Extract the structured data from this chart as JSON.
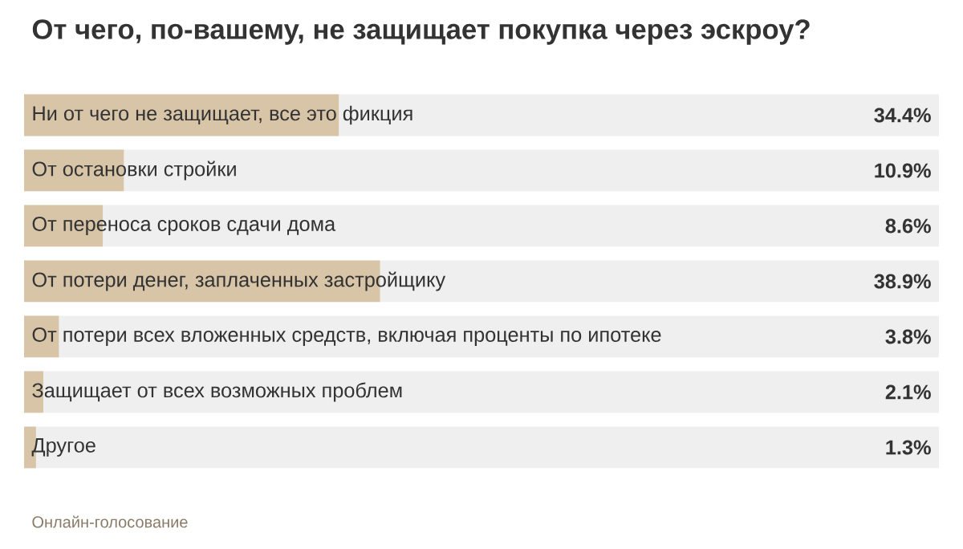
{
  "chart_data": {
    "type": "bar",
    "orientation": "horizontal",
    "title": "От чего, по-вашему, не защищает покупка через эскроу?",
    "categories": [
      "Ни от чего не защищает, все это фикция",
      "От остановки стройки",
      "От переноса сроков сдачи дома",
      "От потери денег, заплаченных застройщику",
      "От потери всех вложенных средств, включая проценты по ипотеке",
      "Защищает от всех возможных проблем",
      "Другое"
    ],
    "values": [
      34.4,
      10.9,
      8.6,
      38.9,
      3.8,
      2.1,
      1.3
    ],
    "value_labels": [
      "34.4%",
      "10.9%",
      "8.6%",
      "38.9%",
      "3.8%",
      "2.1%",
      "1.3%"
    ],
    "color": "#d8c4a6",
    "xlim": [
      0,
      100
    ],
    "tick_labels": false,
    "annotations": [
      "Онлайн-голосование"
    ]
  }
}
